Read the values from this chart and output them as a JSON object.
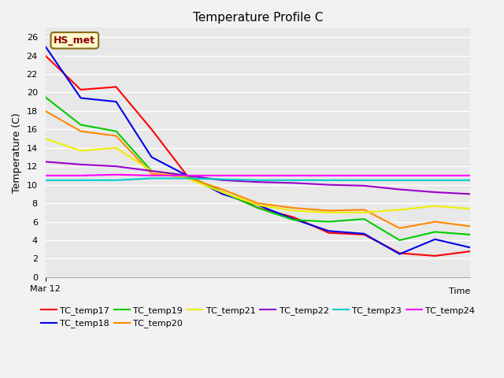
{
  "title": "Temperature Profile C",
  "xlabel": "Time",
  "ylabel": "Temperature (C)",
  "annotation_label": "HS_met",
  "annotation_color": "#8B0000",
  "annotation_bg": "#FFFACD",
  "annotation_border": "#8B6914",
  "ylim": [
    0,
    27
  ],
  "yticks": [
    0,
    2,
    4,
    6,
    8,
    10,
    12,
    14,
    16,
    18,
    20,
    22,
    24,
    26
  ],
  "fig_bg": "#F2F2F2",
  "plot_bg": "#E8E8E8",
  "series_order": [
    "TC_temp17",
    "TC_temp18",
    "TC_temp19",
    "TC_temp20",
    "TC_temp21",
    "TC_temp22",
    "TC_temp23",
    "TC_temp24"
  ],
  "series": {
    "TC_temp17": {
      "color": "#FF0000",
      "x": [
        0,
        1,
        2,
        3,
        4,
        5,
        6,
        7,
        8,
        9,
        10,
        11,
        12
      ],
      "y": [
        24.0,
        20.3,
        20.6,
        16.0,
        11.0,
        9.2,
        7.5,
        6.5,
        4.8,
        4.6,
        2.6,
        2.3,
        2.8
      ]
    },
    "TC_temp18": {
      "color": "#0000EE",
      "x": [
        0,
        1,
        2,
        3,
        4,
        5,
        6,
        7,
        8,
        9,
        10,
        11,
        12
      ],
      "y": [
        25.0,
        19.4,
        19.0,
        13.0,
        11.0,
        9.0,
        7.8,
        6.3,
        5.0,
        4.7,
        2.5,
        4.1,
        3.2
      ]
    },
    "TC_temp19": {
      "color": "#00CC00",
      "x": [
        0,
        1,
        2,
        3,
        4,
        5,
        6,
        7,
        8,
        9,
        10,
        11,
        12
      ],
      "y": [
        19.5,
        16.5,
        15.8,
        11.5,
        11.0,
        9.2,
        7.5,
        6.2,
        6.0,
        6.3,
        4.0,
        4.9,
        4.6
      ]
    },
    "TC_temp20": {
      "color": "#FF8800",
      "x": [
        0,
        1,
        2,
        3,
        4,
        5,
        6,
        7,
        8,
        9,
        10,
        11,
        12
      ],
      "y": [
        18.0,
        15.8,
        15.3,
        11.2,
        10.8,
        9.5,
        8.0,
        7.5,
        7.2,
        7.3,
        5.3,
        6.0,
        5.5
      ]
    },
    "TC_temp21": {
      "color": "#EEEE00",
      "x": [
        0,
        1,
        2,
        3,
        4,
        5,
        6,
        7,
        8,
        9,
        10,
        11,
        12
      ],
      "y": [
        15.0,
        13.7,
        14.0,
        11.5,
        10.7,
        9.2,
        7.8,
        7.2,
        7.0,
        7.0,
        7.3,
        7.7,
        7.4
      ]
    },
    "TC_temp22": {
      "color": "#9900CC",
      "x": [
        0,
        1,
        2,
        3,
        4,
        5,
        6,
        7,
        8,
        9,
        10,
        11,
        12
      ],
      "y": [
        12.5,
        12.2,
        12.0,
        11.5,
        11.0,
        10.5,
        10.3,
        10.2,
        10.0,
        9.9,
        9.5,
        9.2,
        9.0
      ]
    },
    "TC_temp23": {
      "color": "#00CCCC",
      "x": [
        0,
        1,
        2,
        3,
        4,
        5,
        6,
        7,
        8,
        9,
        10,
        11,
        12
      ],
      "y": [
        10.5,
        10.5,
        10.5,
        10.7,
        10.7,
        10.6,
        10.5,
        10.5,
        10.5,
        10.5,
        10.5,
        10.5,
        10.5
      ]
    },
    "TC_temp24": {
      "color": "#FF00FF",
      "x": [
        0,
        1,
        2,
        3,
        4,
        5,
        6,
        7,
        8,
        9,
        10,
        11,
        12
      ],
      "y": [
        11.0,
        11.0,
        11.1,
        11.0,
        11.0,
        11.0,
        11.0,
        11.0,
        11.0,
        11.0,
        11.0,
        11.0,
        11.0
      ]
    }
  }
}
